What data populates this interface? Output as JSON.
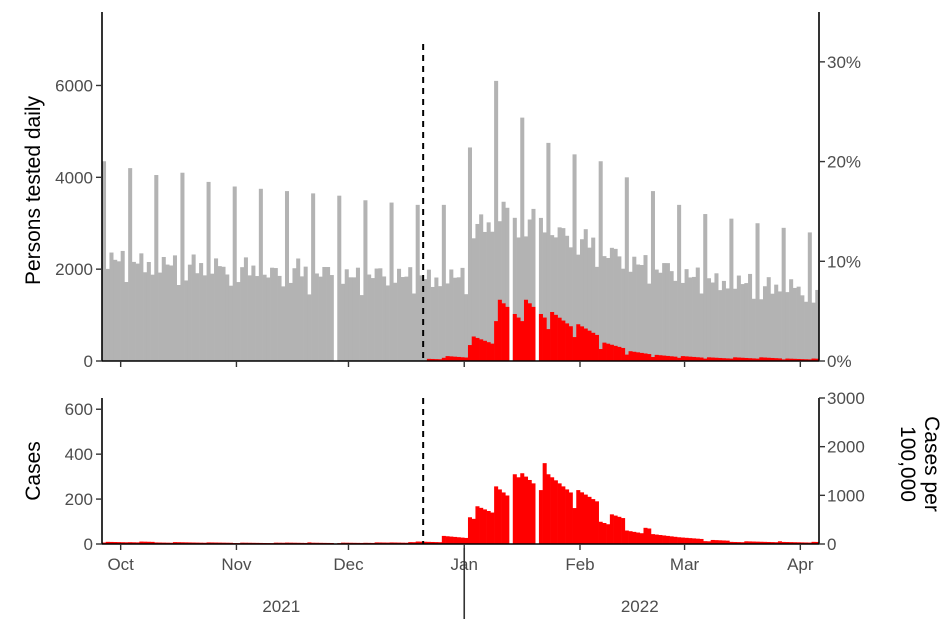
{
  "chart_data": [
    {
      "type": "bar",
      "panel": "top",
      "ylabel": "Persons tested daily",
      "ylabel_right": "",
      "ylim": [
        0,
        7600
      ],
      "y_ticks": [
        0,
        2000,
        4000,
        6000
      ],
      "y_tick_labels": [
        "0",
        "2000",
        "4000",
        "6000"
      ],
      "y2lim": [
        0,
        0.35
      ],
      "y2_ticks": [
        0,
        0.1,
        0.2,
        0.3
      ],
      "y2_tick_labels": [
        "0%",
        "10%",
        "20%",
        "30%"
      ],
      "x_start": "2021-09-26",
      "x_end": "2022-04-06",
      "vline_date": "2021-12-21",
      "series": [
        {
          "color": "#b3b3b3",
          "values_weekly_pattern_note": "",
          "weekly_peaks": [
            4350,
            4200,
            4050,
            4100,
            3900,
            3800,
            3750,
            3700,
            3650,
            3600,
            3500,
            3450,
            3400,
            3400,
            4650,
            6100,
            5300,
            4750,
            4500,
            4350,
            4000,
            3700,
            3400,
            3200,
            3100,
            3000,
            2900,
            2800
          ],
          "weekly_base": [
            1650,
            1600,
            1550,
            1550,
            1500,
            1500,
            1450,
            1450,
            1450,
            1400,
            1400,
            1400,
            1350,
            1350,
            2500,
            2550,
            2450,
            2300,
            2050,
            1800,
            1650,
            1500,
            1400,
            1300,
            1250,
            1200,
            1150,
            1100
          ]
        },
        {
          "color": "#ff0000",
          "weekly_share": [
            0.002,
            0.002,
            0.002,
            0.002,
            0.002,
            0.002,
            0.002,
            0.002,
            0.002,
            0.002,
            0.002,
            0.002,
            0.002,
            0.004,
            0.02,
            0.05,
            0.05,
            0.04,
            0.03,
            0.015,
            0.008,
            0.005,
            0.004,
            0.003,
            0.003,
            0.003,
            0.002,
            0.002
          ]
        }
      ]
    },
    {
      "type": "bar",
      "panel": "bottom",
      "ylabel": "Cases",
      "ylabel_right": "Cases per 100,000",
      "ylim": [
        0,
        650
      ],
      "y_ticks": [
        0,
        200,
        400,
        600
      ],
      "y_tick_labels": [
        "0",
        "200",
        "400",
        "600"
      ],
      "y2lim": [
        0,
        3000
      ],
      "y2_ticks": [
        0,
        1000,
        2000,
        3000
      ],
      "y2_tick_labels": [
        "0",
        "1000",
        "2000",
        "3000"
      ],
      "vline_date": "2021-12-21",
      "color": "#ff0000",
      "weekly_cases": [
        8,
        9,
        7,
        7,
        6,
        5,
        5,
        6,
        5,
        5,
        6,
        7,
        10,
        30,
        140,
        270,
        300,
        270,
        200,
        110,
        60,
        40,
        25,
        15,
        10,
        10,
        8,
        8
      ]
    }
  ],
  "x_axis": {
    "month_ticks": [
      "2021-10-01",
      "2021-11-01",
      "2021-12-01",
      "2022-01-01",
      "2022-02-01",
      "2022-03-01",
      "2022-04-01"
    ],
    "month_labels": [
      "Oct",
      "Nov",
      "Dec",
      "Jan",
      "Feb",
      "Mar",
      "Apr"
    ],
    "year_labels": [
      {
        "label": "2021",
        "center_date": "2021-11-13"
      },
      {
        "label": "2022",
        "center_date": "2022-02-17"
      }
    ],
    "year_divider_date": "2022-01-01"
  }
}
